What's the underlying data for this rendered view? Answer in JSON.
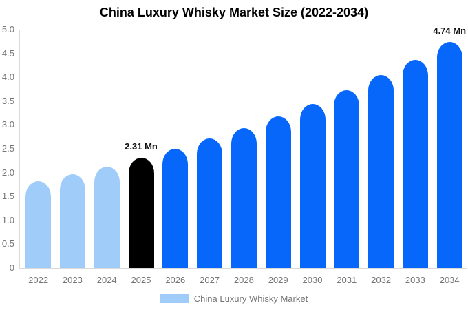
{
  "title": "China Luxury Whisky Market Size (2022-2034)",
  "colors": {
    "light_blue": "#A0CCFA",
    "forecast_blue": "#0667FA",
    "base_year_black": "#000000",
    "axis_text": "#757575",
    "axis_line": "#D9D9D9",
    "title_text": "#000000",
    "annotation_text": "#111111"
  },
  "legend": {
    "label": "China Luxury Whisky Market",
    "swatch_color": "#A0CCFA",
    "position": "bottom"
  },
  "chart_data": {
    "type": "bar",
    "title": "China Luxury Whisky Market Size (2022-2034)",
    "unit": "Mn",
    "categories": [
      "2022",
      "2023",
      "2024",
      "2025",
      "2026",
      "2027",
      "2028",
      "2029",
      "2030",
      "2031",
      "2032",
      "2033",
      "2034"
    ],
    "values": [
      1.82,
      1.97,
      2.13,
      2.31,
      2.5,
      2.71,
      2.93,
      3.18,
      3.44,
      3.73,
      4.04,
      4.37,
      4.74
    ],
    "bar_colors": [
      "#A0CCFA",
      "#A0CCFA",
      "#A0CCFA",
      "#000000",
      "#0667FA",
      "#0667FA",
      "#0667FA",
      "#0667FA",
      "#0667FA",
      "#0667FA",
      "#0667FA",
      "#0667FA",
      "#0667FA"
    ],
    "series_name": "China Luxury Whisky Market",
    "xlabel": "",
    "ylabel": "",
    "ylim": [
      0,
      5
    ],
    "yticks": [
      0,
      0.5,
      1,
      1.5,
      2,
      2.5,
      3,
      3.5,
      4,
      4.5,
      5
    ],
    "ytick_labels": [
      "0",
      "0.5",
      "1.0",
      "1.5",
      "2.0",
      "2.5",
      "3.0",
      "3.5",
      "4.0",
      "4.5",
      "5.0"
    ],
    "grid": false,
    "legend_position": "bottom",
    "data_labels": [
      {
        "category": "2025",
        "text": "2.31 Mn"
      },
      {
        "category": "2034",
        "text": "4.74 Mn"
      }
    ]
  }
}
